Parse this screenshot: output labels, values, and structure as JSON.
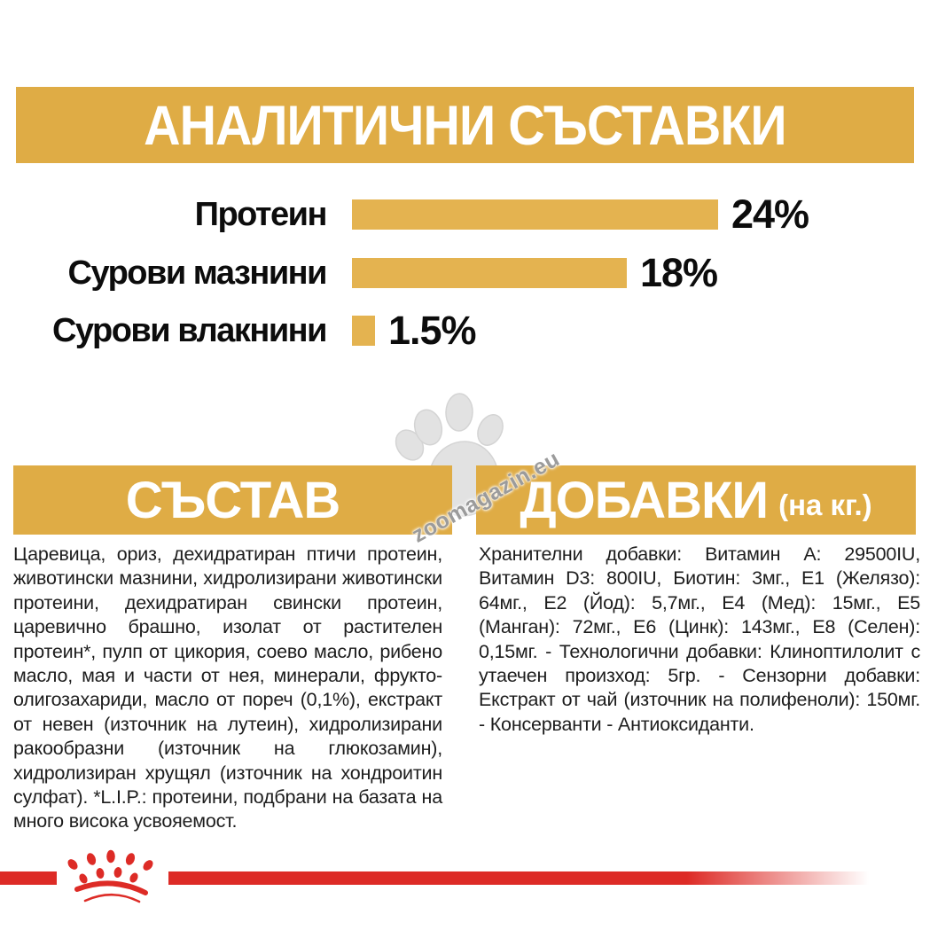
{
  "header": {
    "title": "АНАЛИТИЧНИ СЪСТАВКИ"
  },
  "chart_data": {
    "type": "bar",
    "orientation": "horizontal",
    "categories": [
      "Протеин",
      "Сурови мазнини",
      "Сурови влакнини"
    ],
    "values": [
      24,
      18,
      1.5
    ],
    "value_labels": [
      "24%",
      "18%",
      "1.5%"
    ],
    "unit": "%",
    "xlim": [
      0,
      24
    ],
    "bar_color": "#E4B350",
    "grid": false,
    "legend": false,
    "title": "АНАЛИТИЧНИ СЪСТАВКИ"
  },
  "sections": {
    "composition": {
      "title": "СЪСТАВ",
      "body": "Царевица, ориз, дехидратиран птичи протеин, животински мазнини, хидролизирани животински протеини, дехидратиран свински протеин, царевично брашно, изолат от растителен протеин*, пулп от цикория, соево масло, рибено масло, мая и части от нея, минерали, фрукто-олигозахариди, масло от пореч (0,1%), екстракт от невен (източник на лутеин), хидролизирани ракообразни (източник на глюкозамин), хидролизиран хрущял (източник на хондроитин сулфат). *L.I.P.: протеини, подбрани на базата на много висока усвояемост."
    },
    "additives": {
      "title": "ДОБАВКИ",
      "title_suffix": "(на кг.)",
      "body": "Хранителни добавки: Витамин A: 29500IU, Витамин D3: 800IU, Биотин: 3мг., E1 (Желязо): 64мг., E2 (Йод): 5,7мг., E4 (Мед): 15мг., E5 (Манган): 72мг., E6 (Цинк): 143мг., E8 (Селен): 0,15мг. - Технологични добавки: Клиноптилолит с утаечен произход: 5гр. - Сензорни добавки: Екстракт от чай (източник на полифеноли): 150мг. - Консерванти - Антиоксиданти."
    }
  },
  "watermark": {
    "text": "zoomagazin.eu",
    "icon": "paw-icon",
    "color": "#DEDEDE"
  },
  "footer": {
    "brand_icon": "royal-canin-crown-icon",
    "accent_color": "#DD2B26"
  },
  "colors": {
    "gold_header": "#DFAC45",
    "gold_bar": "#E4B350",
    "red": "#DD2B26",
    "text": "#1D1D1D",
    "background": "#FFFFFF"
  }
}
